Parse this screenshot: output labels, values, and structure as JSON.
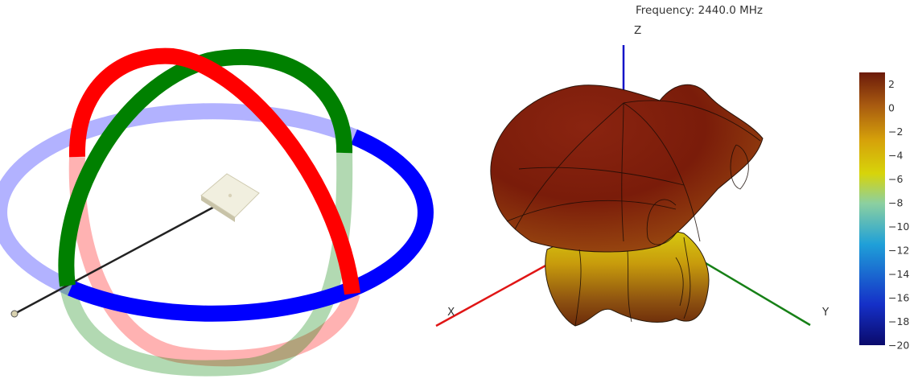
{
  "chart_data": {
    "type": "3d-surface",
    "title": "Frequency: 2440.0 MHz",
    "axes": {
      "x_label": "X",
      "y_label": "Y",
      "z_label": "Z"
    },
    "colorbar": {
      "min": -20,
      "max": 3,
      "ticks": [
        2,
        0,
        -2,
        -4,
        -6,
        -8,
        -10,
        -12,
        -14,
        -16,
        -18,
        -20
      ],
      "tick_labels": [
        "2",
        "0",
        "−2",
        "−4",
        "−6",
        "−8",
        "−10",
        "−12",
        "−14",
        "−16",
        "−18",
        "−20"
      ],
      "colors": [
        "#0a0a6b",
        "#1530c8",
        "#1fa0d8",
        "#8cd0a0",
        "#d7d40a",
        "#d6a20a",
        "#a85a10",
        "#6b1a0a"
      ]
    }
  },
  "orientation": {
    "ring_colors": {
      "xy_ring": "#0000ff",
      "xz_ring": "#ff0000",
      "yz_ring": "#008000"
    },
    "antenna": {
      "patch_color": "#f1efdf",
      "cable_color": "#222222"
    }
  }
}
